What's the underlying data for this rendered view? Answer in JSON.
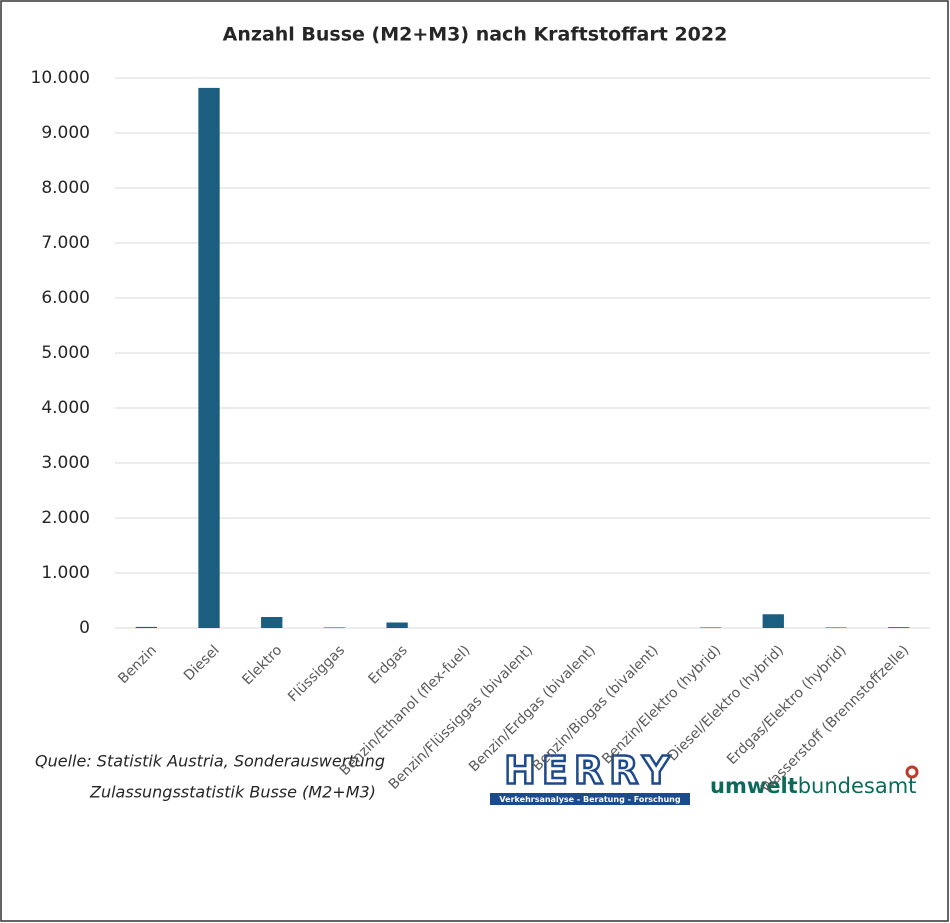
{
  "chart_data": {
    "type": "bar",
    "title": "Anzahl Busse (M2+M3) nach Kraftstoffart 2022",
    "categories": [
      "Benzin",
      "Diesel",
      "Elektro",
      "Flüssiggas",
      "Erdgas",
      "Benzin/Ethanol (flex-fuel)",
      "Benzin/Flüssiggas (bivalent)",
      "Benzin/Erdgas (bivalent)",
      "Benzin/Biogas (bivalent)",
      "Benzin/Elektro (hybrid)",
      "Diesel/Elektro (hybrid)",
      "Erdgas/Elektro (hybrid)",
      "Wasserstoff (Brennstoffzelle)"
    ],
    "values": [
      20,
      9820,
      200,
      10,
      100,
      0,
      0,
      0,
      0,
      10,
      250,
      10,
      15
    ],
    "color": "#1b5e80",
    "ylim": [
      0,
      10000
    ],
    "yticks": [
      0,
      {
        "value": 1000,
        "label": "1.000"
      },
      {
        "value": 2000,
        "label": "2.000"
      },
      {
        "value": 3000,
        "label": "3.000"
      },
      {
        "value": 4000,
        "label": "4.000"
      },
      {
        "value": 5000,
        "label": "5.000"
      },
      {
        "value": 6000,
        "label": "6.000"
      },
      {
        "value": 7000,
        "label": "7.000"
      },
      {
        "value": 8000,
        "label": "8.000"
      },
      {
        "value": 9000,
        "label": "9.000"
      },
      {
        "value": 10000,
        "label": "10.000"
      }
    ],
    "grid": true
  },
  "source": [
    "Quelle: Statistik Austria, Sonderauswertung",
    "Zulassungsstatistik Busse (M2+M3)"
  ],
  "logos": {
    "herry": "HERRY",
    "herry_tagline": "Verkehrsanalyse - Beratung - Forschung",
    "uba_bold": "umwelt",
    "uba_light": "bundesamt"
  }
}
